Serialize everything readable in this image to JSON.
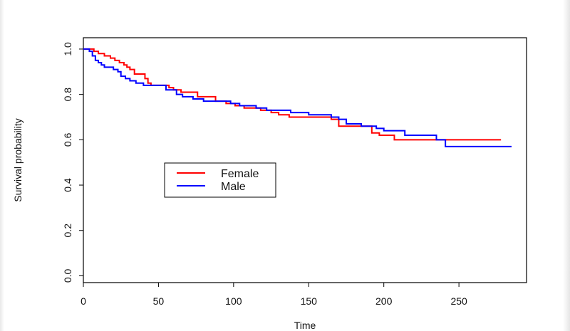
{
  "chart_data": {
    "type": "line",
    "title": "",
    "xlabel": "Time",
    "ylabel": "Survival probability",
    "xlim": [
      0,
      295
    ],
    "ylim": [
      -0.03,
      1.05
    ],
    "xticks": [
      0,
      50,
      100,
      150,
      200,
      250
    ],
    "yticks": [
      0.0,
      0.2,
      0.4,
      0.6,
      0.8,
      1.0
    ],
    "xtick_labels": [
      "0",
      "50",
      "100",
      "150",
      "200",
      "250"
    ],
    "ytick_labels": [
      "0.0",
      "0.2",
      "0.4",
      "0.6",
      "0.8",
      "1.0"
    ],
    "grid": false,
    "legend_position": "center-left",
    "series": [
      {
        "name": "Female",
        "color": "#ff0000",
        "step": true,
        "x": [
          0,
          7,
          10,
          14,
          18,
          21,
          24,
          27,
          29,
          31,
          34,
          41,
          43,
          45,
          53,
          57,
          60,
          63,
          65,
          68,
          76,
          82,
          88,
          95,
          101,
          107,
          113,
          118,
          125,
          130,
          137,
          145,
          155,
          165,
          170,
          177,
          185,
          192,
          197,
          203,
          207,
          215,
          225,
          237,
          250,
          262,
          278
        ],
        "y": [
          1.0,
          0.99,
          0.98,
          0.97,
          0.96,
          0.95,
          0.94,
          0.93,
          0.92,
          0.91,
          0.89,
          0.87,
          0.85,
          0.84,
          0.84,
          0.83,
          0.82,
          0.82,
          0.81,
          0.81,
          0.79,
          0.79,
          0.77,
          0.76,
          0.75,
          0.74,
          0.74,
          0.73,
          0.72,
          0.71,
          0.7,
          0.7,
          0.7,
          0.69,
          0.66,
          0.66,
          0.66,
          0.63,
          0.62,
          0.62,
          0.6,
          0.6,
          0.6,
          0.6,
          0.6,
          0.6,
          0.6
        ]
      },
      {
        "name": "Male",
        "color": "#0000ff",
        "step": true,
        "x": [
          0,
          4,
          6,
          8,
          10,
          12,
          14,
          20,
          23,
          25,
          28,
          31,
          35,
          40,
          55,
          62,
          66,
          73,
          80,
          88,
          98,
          104,
          115,
          122,
          130,
          138,
          150,
          165,
          170,
          175,
          185,
          195,
          200,
          208,
          214,
          235,
          241,
          285
        ],
        "y": [
          1.0,
          0.99,
          0.97,
          0.95,
          0.94,
          0.93,
          0.92,
          0.91,
          0.9,
          0.88,
          0.87,
          0.86,
          0.85,
          0.84,
          0.82,
          0.8,
          0.79,
          0.78,
          0.77,
          0.77,
          0.76,
          0.75,
          0.74,
          0.73,
          0.73,
          0.72,
          0.71,
          0.7,
          0.69,
          0.67,
          0.66,
          0.65,
          0.64,
          0.64,
          0.62,
          0.6,
          0.57,
          0.57
        ]
      }
    ]
  }
}
